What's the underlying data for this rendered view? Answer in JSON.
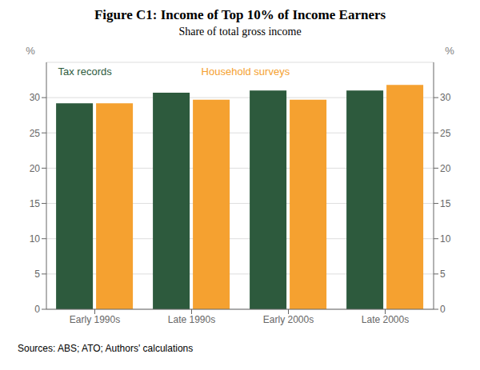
{
  "chart_data": {
    "type": "bar",
    "title": "Figure C1: Income of Top 10% of Income Earners",
    "subtitle": "Share of total gross income",
    "categories": [
      "Early 1990s",
      "Late 1990s",
      "Early 2000s",
      "Late 2000s"
    ],
    "series": [
      {
        "name": "Tax records",
        "color": "#2d5a3d",
        "values": [
          29.2,
          30.7,
          31.0,
          31.0
        ]
      },
      {
        "name": "Household surveys",
        "color": "#f5a130",
        "values": [
          29.2,
          29.7,
          29.7,
          31.8
        ]
      }
    ],
    "ylim": [
      0,
      35
    ],
    "yticks": [
      0,
      5,
      10,
      15,
      20,
      25,
      30
    ],
    "ylabel": "%",
    "y2lim": [
      0,
      35
    ],
    "y2ticks": [
      0,
      5,
      10,
      15,
      20,
      25,
      30
    ],
    "y2label": "%",
    "grid": true,
    "source": "Sources:  ABS; ATO; Authors' calculations"
  }
}
